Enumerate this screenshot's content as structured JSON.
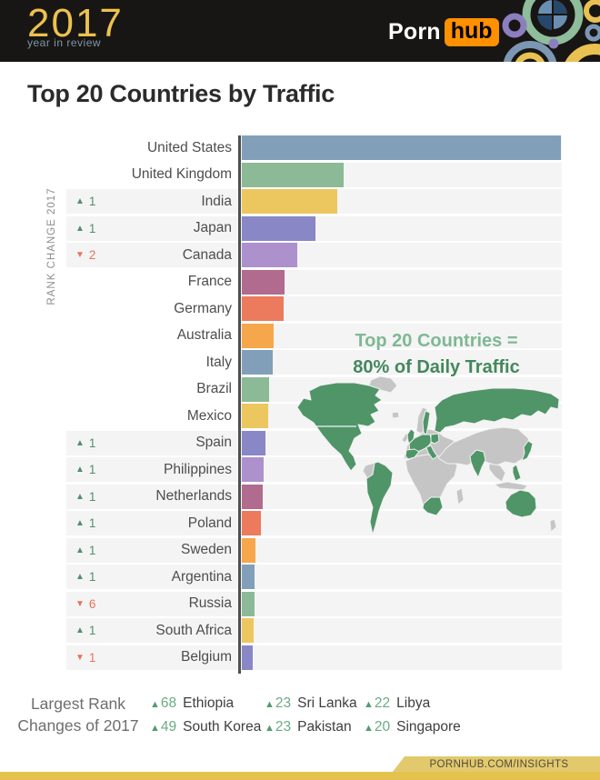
{
  "header": {
    "logo": {
      "year": "2017",
      "subtitle": "year in review"
    },
    "brand": {
      "part1": "Porn",
      "part2": "hub"
    },
    "colors": {
      "bg": "#181614",
      "logo_gold": "#ecc14f",
      "subtitle_blue": "#7d95ab",
      "hub_orange": "#ff9000"
    }
  },
  "page_title": "Top 20 Countries by Traffic",
  "chart_data": {
    "type": "bar",
    "orientation": "horizontal",
    "title": "Top 20 Countries by Traffic",
    "value_note": "No numeric axis shown; values are relative bar lengths with United States = 100",
    "axis_label": "RANK CHANGE 2017",
    "grid": false,
    "legend_position": "none",
    "categories": [
      "United States",
      "United Kingdom",
      "India",
      "Japan",
      "Canada",
      "France",
      "Germany",
      "Australia",
      "Italy",
      "Brazil",
      "Mexico",
      "Spain",
      "Philippines",
      "Netherlands",
      "Poland",
      "Sweden",
      "Argentina",
      "Russia",
      "South Africa",
      "Belgium"
    ],
    "values": [
      100,
      32,
      30,
      23,
      17.5,
      13.5,
      13,
      10,
      9.7,
      8.5,
      8.3,
      7.3,
      6.8,
      6.5,
      6,
      4.3,
      4,
      4,
      3.6,
      3.4
    ],
    "rank_changes": [
      null,
      null,
      {
        "icon": "▲",
        "dir": "up",
        "value": "1"
      },
      {
        "icon": "▲",
        "dir": "up",
        "value": "1"
      },
      {
        "icon": "▼",
        "dir": "down",
        "value": "2"
      },
      null,
      null,
      null,
      null,
      null,
      null,
      {
        "icon": "▲",
        "dir": "up",
        "value": "1"
      },
      {
        "icon": "▲",
        "dir": "up",
        "value": "1"
      },
      {
        "icon": "▲",
        "dir": "up",
        "value": "1"
      },
      {
        "icon": "▲",
        "dir": "up",
        "value": "1"
      },
      {
        "icon": "▲",
        "dir": "up",
        "value": "1"
      },
      {
        "icon": "▲",
        "dir": "up",
        "value": "1"
      },
      {
        "icon": "▼",
        "dir": "down",
        "value": "6"
      },
      {
        "icon": "▲",
        "dir": "up",
        "value": "1"
      },
      {
        "icon": "▼",
        "dir": "down",
        "value": "1"
      }
    ],
    "palette": [
      "#819fb9",
      "#8cba97",
      "#ecc65f",
      "#8987c6",
      "#ac91cd",
      "#b16b8e",
      "#ec7a5d",
      "#f7a74b"
    ],
    "row_bg": "#f4f4f4",
    "annotation": {
      "line1": "Top 20 Countries =",
      "line2": "80% of Daily Traffic"
    }
  },
  "map": {
    "highlight_color": "#4f9568",
    "base_color": "#c5c5c5",
    "meaning": "top 20 countries highlighted green"
  },
  "rank_legend": {
    "title_line1": "Largest Rank",
    "title_line2": "Changes of 2017",
    "items": [
      {
        "icon": "▲",
        "dir": "up",
        "value": "68",
        "name": "Ethiopia"
      },
      {
        "icon": "▲",
        "dir": "up",
        "value": "49",
        "name": "South Korea"
      },
      {
        "icon": "▲",
        "dir": "up",
        "value": "23",
        "name": "Sri Lanka"
      },
      {
        "icon": "▲",
        "dir": "up",
        "value": "23",
        "name": "Pakistan"
      },
      {
        "icon": "▲",
        "dir": "up",
        "value": "22",
        "name": "Libya"
      },
      {
        "icon": "▲",
        "dir": "up",
        "value": "20",
        "name": "Singapore"
      }
    ]
  },
  "footer": {
    "url": "PORNHUB.COM/INSIGHTS",
    "gold": "#e4c24e"
  },
  "colors": {
    "up_green": "#4f9069",
    "down_red": "#e8735a",
    "annotation_light": "#7fb894",
    "annotation_dark": "#43885d"
  }
}
